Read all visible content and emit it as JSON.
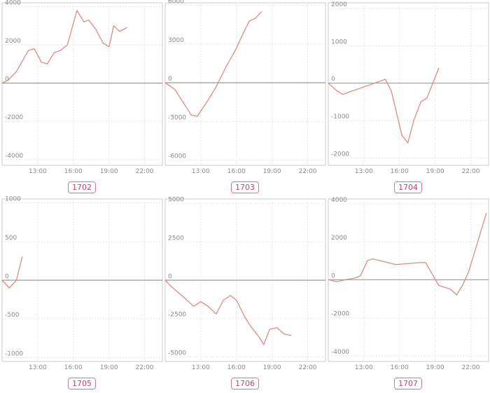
{
  "colors": {
    "line": "#e08a86",
    "zero_line": "#999999",
    "frame": "#cccccc",
    "grid": "#e6e6e6",
    "chip": "#d97a93"
  },
  "chart_data": [
    {
      "type": "line",
      "title": "",
      "label": "1702",
      "ylim": [
        -4300,
        4200
      ],
      "yticks": [
        4000,
        2000,
        0,
        -2000,
        -4000
      ],
      "xlim": [
        10.0,
        23.5
      ],
      "xticks": [
        13,
        16,
        19,
        22
      ],
      "xtick_labels": [
        "13:00",
        "16:00",
        "19:00",
        "22:00"
      ],
      "x": [
        10.0,
        10.5,
        11.2,
        12.2,
        12.7,
        13.3,
        13.8,
        14.4,
        14.9,
        15.5,
        16.3,
        16.9,
        17.3,
        17.9,
        18.5,
        19.0,
        19.4,
        19.9,
        20.5
      ],
      "y": [
        0,
        150,
        600,
        1700,
        1800,
        1100,
        1000,
        1600,
        1700,
        2000,
        3800,
        3200,
        3300,
        2800,
        2100,
        1900,
        3000,
        2700,
        2900
      ]
    },
    {
      "type": "line",
      "title": "",
      "label": "1703",
      "ylim": [
        -6400,
        6200
      ],
      "yticks": [
        6000,
        3000,
        0,
        -3000,
        -6000
      ],
      "xlim": [
        10.0,
        23.5
      ],
      "xticks": [
        13,
        16,
        19,
        22
      ],
      "xtick_labels": [
        "13:00",
        "16:00",
        "19:00",
        "22:00"
      ],
      "x": [
        10.0,
        10.8,
        11.5,
        12.2,
        12.7,
        13.5,
        14.3,
        15.1,
        15.9,
        16.6,
        17.1,
        17.6,
        18.1
      ],
      "y": [
        0,
        -500,
        -1500,
        -2500,
        -2600,
        -1500,
        -300,
        1200,
        2500,
        3900,
        4800,
        5000,
        5500
      ]
    },
    {
      "type": "line",
      "title": "",
      "label": "1704",
      "ylim": [
        -2200,
        2150
      ],
      "yticks": [
        2000,
        1000,
        0,
        -1000,
        -2000
      ],
      "xlim": [
        10.0,
        23.5
      ],
      "xticks": [
        13,
        16,
        19,
        22
      ],
      "xtick_labels": [
        "13:00",
        "16:00",
        "19:00",
        "22:00"
      ],
      "x": [
        10.0,
        10.7,
        11.2,
        14.8,
        15.3,
        16.2,
        16.7,
        17.2,
        17.8,
        18.3,
        18.8,
        19.3
      ],
      "y": [
        0,
        -200,
        -300,
        100,
        -200,
        -1400,
        -1600,
        -1000,
        -500,
        -400,
        0,
        400
      ]
    },
    {
      "type": "line",
      "title": "",
      "label": "1705",
      "ylim": [
        -1050,
        1050
      ],
      "yticks": [
        1000,
        500,
        0,
        -500,
        -1000
      ],
      "xlim": [
        10.0,
        23.5
      ],
      "xticks": [
        13,
        16,
        19,
        22
      ],
      "xtick_labels": [
        "13:00",
        "16:00",
        "19:00",
        "22:00"
      ],
      "x": [
        10.0,
        10.6,
        11.2,
        11.7
      ],
      "y": [
        0,
        -100,
        0,
        300
      ]
    },
    {
      "type": "line",
      "title": "",
      "label": "1706",
      "ylim": [
        -5300,
        5300
      ],
      "yticks": [
        5000,
        2500,
        0,
        -2500,
        -5000
      ],
      "xlim": [
        10.0,
        23.5
      ],
      "xticks": [
        13,
        16,
        19,
        22
      ],
      "xtick_labels": [
        "13:00",
        "16:00",
        "19:00",
        "22:00"
      ],
      "x": [
        10.0,
        10.5,
        11.4,
        12.4,
        13.0,
        13.6,
        14.3,
        14.9,
        15.5,
        16.0,
        16.7,
        17.2,
        17.9,
        18.3,
        18.8,
        19.4,
        20.0,
        20.6
      ],
      "y": [
        0,
        -400,
        -1000,
        -1700,
        -1400,
        -1700,
        -2200,
        -1300,
        -1000,
        -1300,
        -2400,
        -3000,
        -3700,
        -4200,
        -3200,
        -3100,
        -3500,
        -3600
      ]
    },
    {
      "type": "line",
      "title": "",
      "label": "1707",
      "ylim": [
        -4300,
        4250
      ],
      "yticks": [
        4000,
        2000,
        0,
        -2000,
        -4000
      ],
      "xlim": [
        10.0,
        23.5
      ],
      "xticks": [
        13,
        16,
        19,
        22
      ],
      "xtick_labels": [
        "13:00",
        "16:00",
        "19:00",
        "22:00"
      ],
      "x": [
        10.0,
        10.7,
        11.5,
        12.3,
        12.7,
        13.3,
        13.7,
        15.7,
        17.7,
        18.2,
        19.3,
        20.3,
        20.8,
        21.3,
        21.8,
        22.3,
        23.3
      ],
      "y": [
        0,
        -100,
        0,
        100,
        200,
        1000,
        1100,
        800,
        900,
        900,
        -300,
        -500,
        -800,
        -300,
        400,
        1400,
        3500
      ]
    }
  ]
}
